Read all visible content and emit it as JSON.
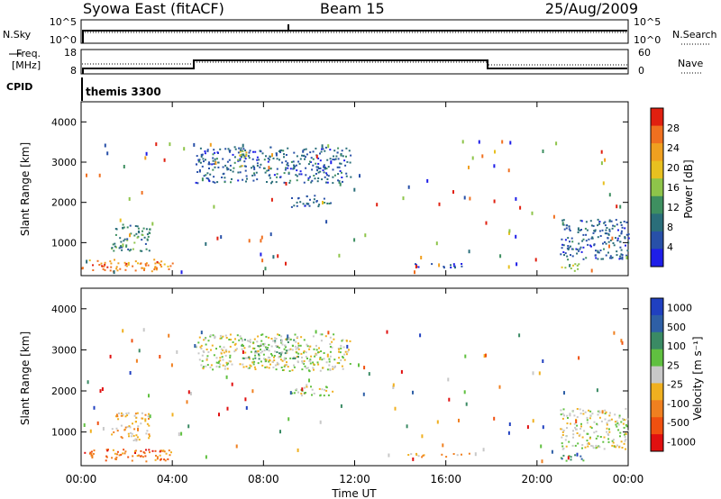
{
  "header": {
    "title": "Syowa East (fitACF)",
    "beam": "Beam 15",
    "date": "25/Aug/2009"
  },
  "top_panels": {
    "nsky_label": "N.Sky",
    "nsky_ticks": [
      "10^5",
      "10^0"
    ],
    "nsearch_label": "N.Search",
    "nsearch_ticks": [
      "10^5",
      "10^0"
    ],
    "freq_label_line1": "Freq.",
    "freq_label_line2": "[MHz]",
    "freq_ticks": [
      "18",
      "8"
    ],
    "nave_label": "Nave",
    "nave_ticks": [
      "60",
      "0"
    ],
    "cpid_label": "CPID",
    "cpid_value": "themis 3300"
  },
  "colors": {
    "power_scale": [
      "#1e1ee8",
      "#2850a8",
      "#2a6e7a",
      "#3e8f60",
      "#8ec44a",
      "#e8c020",
      "#f0a020",
      "#f07020",
      "#e02010"
    ],
    "velocity_scale": [
      "#2040c0",
      "#2e5fa6",
      "#3a8a64",
      "#60c040",
      "#c8c8c8",
      "#f0b020",
      "#f08020",
      "#f05010",
      "#e01010"
    ]
  },
  "chart_data": [
    {
      "type": "heatmap",
      "name_label": "power",
      "ylabel": "Slant Range [km]",
      "xlabel": "Time UT",
      "x_ticks": [
        "00:00",
        "04:00",
        "08:00",
        "12:00",
        "16:00",
        "20:00",
        "00:00"
      ],
      "x_range_hours": [
        0,
        24
      ],
      "y_ticks": [
        "1000",
        "2000",
        "3000",
        "4000"
      ],
      "y_range_km": [
        180,
        4500
      ],
      "colorbar_label": "Power [dB]",
      "colorbar_ticks": [
        "4",
        "8",
        "12",
        "16",
        "20",
        "24",
        "28"
      ],
      "regions": [
        {
          "t0": 0.0,
          "t1": 4.0,
          "r0": 300,
          "r1": 600,
          "level": 6.5
        },
        {
          "t0": 1.3,
          "t1": 3.0,
          "r0": 800,
          "r1": 1500,
          "level": 2.5
        },
        {
          "t0": 5.0,
          "t1": 11.8,
          "r0": 2500,
          "r1": 3400,
          "level": 1.5
        },
        {
          "t0": 6.8,
          "t1": 7.3,
          "r0": 2900,
          "r1": 3300,
          "level": 4.5
        },
        {
          "t0": 9.2,
          "t1": 11.0,
          "r0": 1900,
          "r1": 2200,
          "level": 1.5
        },
        {
          "t0": 14.3,
          "t1": 17.0,
          "r0": 400,
          "r1": 500,
          "level": 1.2
        },
        {
          "t0": 21.0,
          "t1": 24.0,
          "r0": 600,
          "r1": 1600,
          "level": 1.5
        },
        {
          "t0": 21.0,
          "t1": 22.0,
          "r0": 300,
          "r1": 500,
          "level": 3.5
        }
      ]
    },
    {
      "type": "heatmap",
      "name_label": "velocity",
      "ylabel": "Slant Range [km]",
      "xlabel": "Time UT",
      "x_ticks": [
        "00:00",
        "04:00",
        "08:00",
        "12:00",
        "16:00",
        "20:00",
        "00:00"
      ],
      "x_range_hours": [
        0,
        24
      ],
      "y_ticks": [
        "1000",
        "2000",
        "3000",
        "4000"
      ],
      "y_range_km": [
        180,
        4500
      ],
      "colorbar_label": "Velocity [m s⁻¹]",
      "colorbar_ticks": [
        "1000",
        "500",
        "100",
        "25",
        "-25",
        "-100",
        "-500",
        "-1000"
      ],
      "regions": [
        {
          "t0": 0.0,
          "t1": 4.0,
          "r0": 300,
          "r1": 600,
          "level": 6.5
        },
        {
          "t0": 1.3,
          "t1": 3.0,
          "r0": 800,
          "r1": 1500,
          "level": 5.0
        },
        {
          "t0": 5.0,
          "t1": 11.8,
          "r0": 2500,
          "r1": 3400,
          "level": 4.0
        },
        {
          "t0": 7.0,
          "t1": 9.5,
          "r0": 2800,
          "r1": 3300,
          "level": 3.0
        },
        {
          "t0": 9.2,
          "t1": 11.0,
          "r0": 1900,
          "r1": 2200,
          "level": 3.5
        },
        {
          "t0": 14.3,
          "t1": 17.0,
          "r0": 400,
          "r1": 500,
          "level": 5.0
        },
        {
          "t0": 21.0,
          "t1": 24.0,
          "r0": 600,
          "r1": 1600,
          "level": 4.0
        },
        {
          "t0": 21.0,
          "t1": 22.0,
          "r0": 300,
          "r1": 500,
          "level": 2.0
        }
      ]
    }
  ]
}
